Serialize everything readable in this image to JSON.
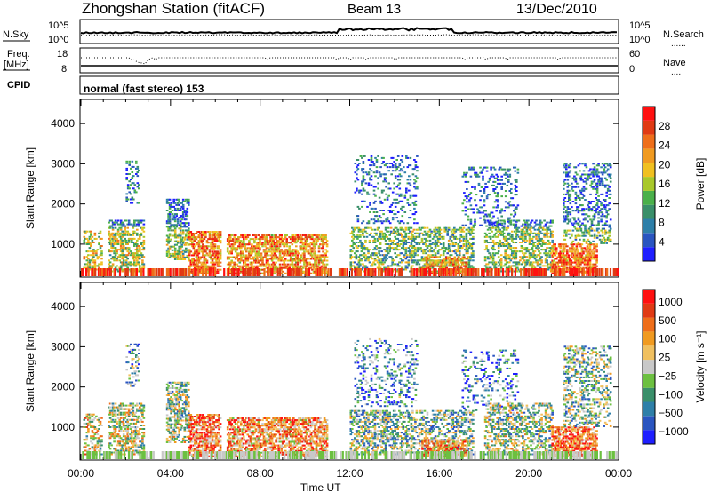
{
  "header": {
    "station": "Zhongshan Station (fitACF)",
    "beam": "Beam 13",
    "date": "13/Dec/2010"
  },
  "top_panels": {
    "sky_label": "N.Sky",
    "sky_left_ticks": [
      "10^5",
      "10^0"
    ],
    "sky_right_ticks": [
      "10^5",
      "10^0"
    ],
    "search_label": "N.Search",
    "freq_label": "Freq.",
    "freq_unit": "[MHz]",
    "freq_ticks": [
      "18",
      "8"
    ],
    "nave_ticks": [
      "60",
      "0"
    ],
    "nave_label": "Nave",
    "cpid_label": "CPID",
    "cpid_text": "normal (fast stereo) 153"
  },
  "legend_dots": "......",
  "legend_dots_short": "....",
  "chart_data": [
    {
      "type": "heatmap",
      "quantity": "Power",
      "ylabel": "Slant Range [km]",
      "xlabel": "Time UT",
      "ylim": [
        180,
        4600
      ],
      "xlim": [
        0,
        24
      ],
      "yticks": [
        "1000",
        "2000",
        "3000",
        "4000"
      ],
      "colorbar": {
        "label": "Power [dB]",
        "ticks": [
          "4",
          "8",
          "12",
          "16",
          "20",
          "24",
          "28"
        ],
        "colors": [
          "#1f1fff",
          "#2a55c0",
          "#2e7fa8",
          "#3a8f6a",
          "#4ab04a",
          "#a8c82a",
          "#f0c020",
          "#f09a20",
          "#ee6e1a",
          "#e03a14",
          "#ff1010"
        ]
      }
    },
    {
      "type": "heatmap",
      "quantity": "Velocity",
      "ylabel": "Slant Range [km]",
      "xlabel": "Time UT",
      "ylim": [
        180,
        4600
      ],
      "xlim": [
        0,
        24
      ],
      "yticks": [
        "1000",
        "2000",
        "3000",
        "4000"
      ],
      "xticks": [
        "00:00",
        "04:00",
        "08:00",
        "12:00",
        "16:00",
        "20:00",
        "00:00"
      ],
      "colorbar": {
        "label": "Velocity [m s⁻¹]",
        "ticks": [
          "1000",
          "500",
          "100",
          "25",
          "−25",
          "−100",
          "−500",
          "−1000"
        ],
        "colors": [
          "#1f1fff",
          "#2a55c0",
          "#2e7fa8",
          "#3a8f6a",
          "#6cc040",
          "#c8c8c8",
          "#f0c060",
          "#f09a20",
          "#ee6e1a",
          "#e03a14",
          "#ff1010"
        ]
      }
    }
  ]
}
